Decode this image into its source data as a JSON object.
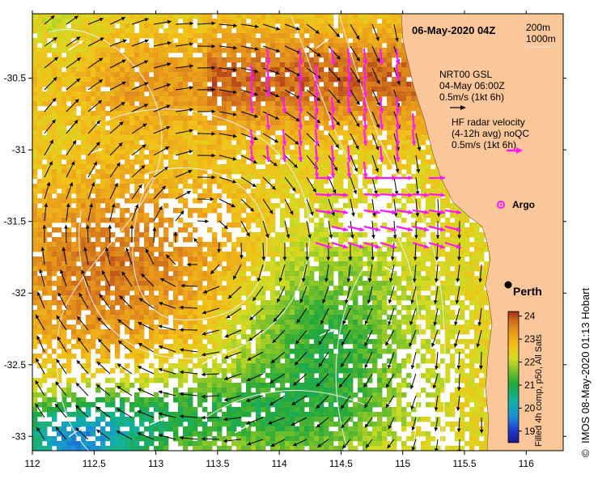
{
  "map": {
    "title": "06-May-2020 04Z",
    "credit": "IMOS 08-May-2020 01:13 Hobart",
    "copyright_symbol": "©",
    "x_axis": {
      "min": 112,
      "max": 116.3,
      "ticks": [
        "112",
        "112.5",
        "113",
        "113.5",
        "114",
        "114.5",
        "115",
        "115.5",
        "116"
      ]
    },
    "y_axis": {
      "min": -33.1,
      "max": -30.05,
      "ticks": [
        "-30.5",
        "-31",
        "-31.5",
        "-32",
        "-32.5",
        "-33"
      ]
    },
    "contour_legend": [
      "200m",
      "1000m"
    ],
    "gsl_legend": {
      "line1": "NRT00 GSL",
      "line2": "04-May 06:00Z",
      "line3": "0.5m/s (1kt 6h)"
    },
    "radar_legend": {
      "line1": "HF radar velocity",
      "line2": "(4-12h avg) noQC",
      "line3": "0.5m/s (1kt 6h)"
    },
    "argo_label": "Argo",
    "city": {
      "name": "Perth",
      "lon": 115.86,
      "lat": -31.95
    },
    "colorbar": {
      "min": 18.5,
      "max": 24.2,
      "ticks": [
        "19",
        "20",
        "21",
        "22",
        "23",
        "24"
      ],
      "label": "Filled 4h comp, p50, All Sats"
    },
    "colors": {
      "land": "#fbc79a",
      "radar": "#ff17ff",
      "contour": "#e8e8e8"
    }
  }
}
